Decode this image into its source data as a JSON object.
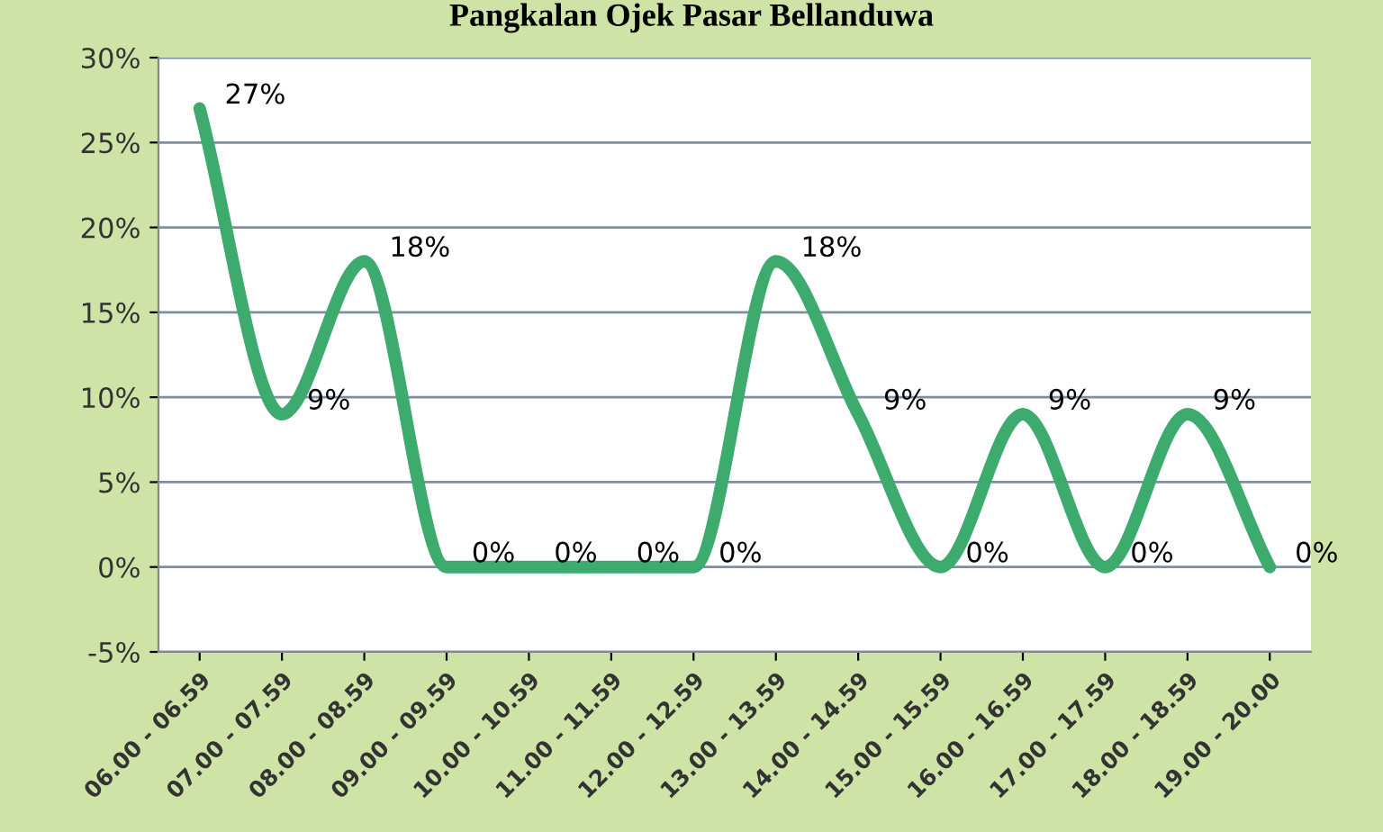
{
  "chart_data": {
    "type": "line",
    "title": "Pangkalan Ojek Pasar Bellanduwa",
    "categories": [
      "06.00 - 06.59",
      "07.00 - 07.59",
      "08.00 - 08.59",
      "09.00 - 09.59",
      "10.00 - 10.59",
      "11.00 - 11.59",
      "12.00 - 12.59",
      "13.00 - 13.59",
      "14.00 - 14.59",
      "15.00 - 15.59",
      "16.00 - 16.59",
      "17.00 - 17.59",
      "18.00 - 18.59",
      "19.00 - 20.00"
    ],
    "series": [
      {
        "color": "#3daa6e",
        "values": [
          27,
          9,
          18,
          0,
          0,
          0,
          0,
          18,
          9,
          0,
          9,
          0,
          9,
          0
        ],
        "value_labels": [
          "27%",
          "9%",
          "18%",
          "0%",
          "0%",
          "0%",
          "0%",
          "18%",
          "9%",
          "0%",
          "9%",
          "0%",
          "9%",
          "0%"
        ]
      }
    ],
    "ylim": [
      -5,
      30
    ],
    "yticks": [
      {
        "value": -5,
        "label": "-5%"
      },
      {
        "value": 0,
        "label": "0%"
      },
      {
        "value": 5,
        "label": "5%"
      },
      {
        "value": 10,
        "label": "10%"
      },
      {
        "value": 15,
        "label": "15%"
      },
      {
        "value": 20,
        "label": "20%"
      },
      {
        "value": 25,
        "label": "25%"
      },
      {
        "value": 30,
        "label": "30%"
      }
    ],
    "grid": "y",
    "marker": "none",
    "line_style": "solid"
  }
}
